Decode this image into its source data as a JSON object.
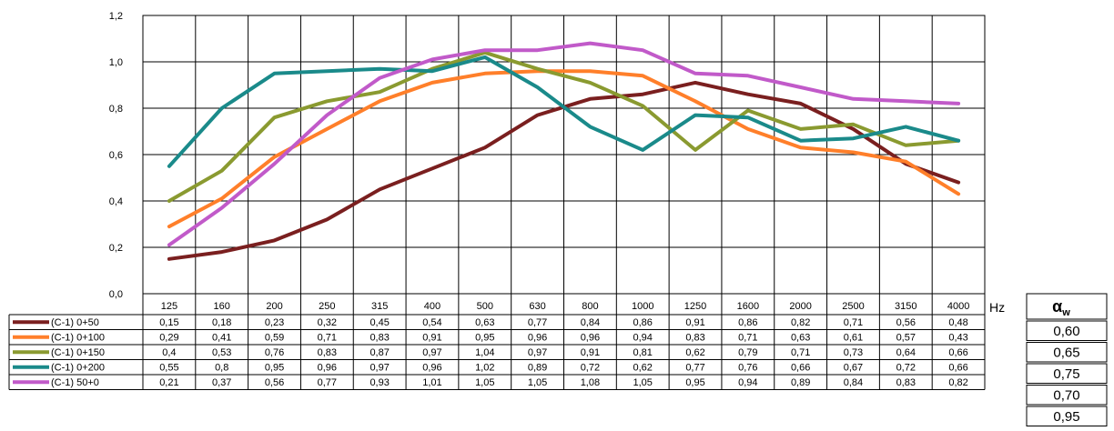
{
  "chart_data": {
    "type": "line",
    "categories": [
      "125",
      "160",
      "200",
      "250",
      "315",
      "400",
      "500",
      "630",
      "800",
      "1000",
      "1250",
      "1600",
      "2000",
      "2500",
      "3150",
      "4000"
    ],
    "x_unit": "Hz",
    "ylim": [
      0.0,
      1.2
    ],
    "y_ticks": [
      "0,0",
      "0,2",
      "0,4",
      "0,6",
      "0,8",
      "1,0",
      "1,2"
    ],
    "grid": true,
    "legend_position": "table-below",
    "series": [
      {
        "name": "(C-1) 0+50",
        "color": "#7a1f1f",
        "values": [
          0.15,
          0.18,
          0.23,
          0.32,
          0.45,
          0.54,
          0.63,
          0.77,
          0.84,
          0.86,
          0.91,
          0.86,
          0.82,
          0.71,
          0.56,
          0.48
        ],
        "labels": [
          "0,15",
          "0,18",
          "0,23",
          "0,32",
          "0,45",
          "0,54",
          "0,63",
          "0,77",
          "0,84",
          "0,86",
          "0,91",
          "0,86",
          "0,82",
          "0,71",
          "0,56",
          "0,48"
        ],
        "alpha_w": "0,60"
      },
      {
        "name": "(C-1) 0+100",
        "color": "#ff7f2a",
        "values": [
          0.29,
          0.41,
          0.59,
          0.71,
          0.83,
          0.91,
          0.95,
          0.96,
          0.96,
          0.94,
          0.83,
          0.71,
          0.63,
          0.61,
          0.57,
          0.43
        ],
        "labels": [
          "0,29",
          "0,41",
          "0,59",
          "0,71",
          "0,83",
          "0,91",
          "0,95",
          "0,96",
          "0,96",
          "0,94",
          "0,83",
          "0,71",
          "0,63",
          "0,61",
          "0,57",
          "0,43"
        ],
        "alpha_w": "0,65"
      },
      {
        "name": "(C-1) 0+150",
        "color": "#8a9a30",
        "values": [
          0.4,
          0.53,
          0.76,
          0.83,
          0.87,
          0.97,
          1.04,
          0.97,
          0.91,
          0.81,
          0.62,
          0.79,
          0.71,
          0.73,
          0.64,
          0.66
        ],
        "labels": [
          "0,4",
          "0,53",
          "0,76",
          "0,83",
          "0,87",
          "0,97",
          "1,04",
          "0,97",
          "0,91",
          "0,81",
          "0,62",
          "0,79",
          "0,71",
          "0,73",
          "0,64",
          "0,66"
        ],
        "alpha_w": "0,75"
      },
      {
        "name": "(C-1) 0+200",
        "color": "#1a8a8a",
        "values": [
          0.55,
          0.8,
          0.95,
          0.96,
          0.97,
          0.96,
          1.02,
          0.89,
          0.72,
          0.62,
          0.77,
          0.76,
          0.66,
          0.67,
          0.72,
          0.66
        ],
        "labels": [
          "0,55",
          "0,8",
          "0,95",
          "0,96",
          "0,97",
          "0,96",
          "1,02",
          "0,89",
          "0,72",
          "0,62",
          "0,77",
          "0,76",
          "0,66",
          "0,67",
          "0,72",
          "0,66"
        ],
        "alpha_w": "0,70"
      },
      {
        "name": "(C-1) 50+0",
        "color": "#c15ac9",
        "values": [
          0.21,
          0.37,
          0.56,
          0.77,
          0.93,
          1.01,
          1.05,
          1.05,
          1.08,
          1.05,
          0.95,
          0.94,
          0.89,
          0.84,
          0.83,
          0.82
        ],
        "labels": [
          "0,21",
          "0,37",
          "0,56",
          "0,77",
          "0,93",
          "1,01",
          "1,05",
          "1,05",
          "1,08",
          "1,05",
          "0,95",
          "0,94",
          "0,89",
          "0,84",
          "0,83",
          "0,82"
        ],
        "alpha_w": "0,95"
      }
    ],
    "alpha_w_header": "αw"
  }
}
